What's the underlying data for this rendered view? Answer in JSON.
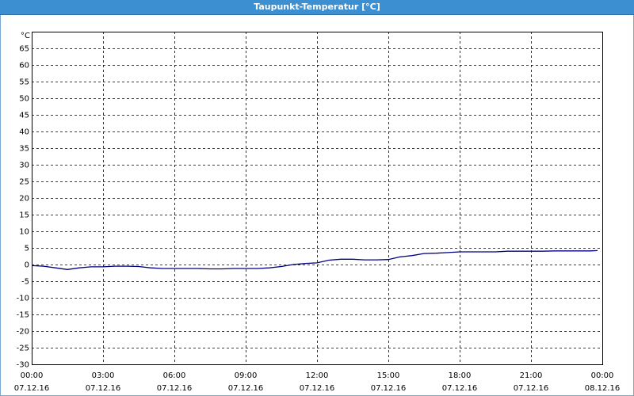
{
  "window": {
    "title": "Taupunkt-Temperatur [°C]"
  },
  "chart_data": {
    "type": "line",
    "title": "Taupunkt-Temperatur [°C]",
    "y_unit_label": "°C",
    "xlabel": "",
    "ylabel": "",
    "ylim": [
      -30,
      70
    ],
    "xlim_hours": [
      0,
      24
    ],
    "grid": true,
    "y_ticks": [
      "65",
      "60",
      "55",
      "50",
      "45",
      "40",
      "35",
      "30",
      "25",
      "20",
      "15",
      "10",
      "5",
      "0",
      "-5",
      "-10",
      "-15",
      "-20",
      "-25",
      "-30"
    ],
    "y_tick_values": [
      65,
      60,
      55,
      50,
      45,
      40,
      35,
      30,
      25,
      20,
      15,
      10,
      5,
      0,
      -5,
      -10,
      -15,
      -20,
      -25,
      -30
    ],
    "x_ticks": [
      {
        "time": "00:00",
        "date": "07.12.16",
        "hour": 0
      },
      {
        "time": "03:00",
        "date": "07.12.16",
        "hour": 3
      },
      {
        "time": "06:00",
        "date": "07.12.16",
        "hour": 6
      },
      {
        "time": "09:00",
        "date": "07.12.16",
        "hour": 9
      },
      {
        "time": "12:00",
        "date": "07.12.16",
        "hour": 12
      },
      {
        "time": "15:00",
        "date": "07.12.16",
        "hour": 15
      },
      {
        "time": "18:00",
        "date": "07.12.16",
        "hour": 18
      },
      {
        "time": "21:00",
        "date": "07.12.16",
        "hour": 21
      },
      {
        "time": "00:00",
        "date": "08.12.16",
        "hour": 24
      }
    ],
    "series": [
      {
        "color": "#000080",
        "x_hours": [
          0,
          0.5,
          1.0,
          1.5,
          2.0,
          2.5,
          3.0,
          3.5,
          4.0,
          4.5,
          5.0,
          5.5,
          6.0,
          6.5,
          7.0,
          7.5,
          8.0,
          8.5,
          9.0,
          9.5,
          10.0,
          10.5,
          11.0,
          11.5,
          12.0,
          12.5,
          13.0,
          13.5,
          14.0,
          14.5,
          15.0,
          15.5,
          16.0,
          16.5,
          17.0,
          17.5,
          18.0,
          18.5,
          19.0,
          19.5,
          20.0,
          20.5,
          21.0,
          21.5,
          22.0,
          22.5,
          23.0,
          23.5,
          23.8
        ],
        "values": [
          -0.3,
          -0.5,
          -1.0,
          -1.5,
          -1.0,
          -0.7,
          -0.7,
          -0.5,
          -0.5,
          -0.6,
          -1.0,
          -1.2,
          -1.2,
          -1.2,
          -1.2,
          -1.3,
          -1.3,
          -1.2,
          -1.2,
          -1.2,
          -1.0,
          -0.6,
          0.0,
          0.3,
          0.5,
          1.3,
          1.6,
          1.6,
          1.4,
          1.4,
          1.5,
          2.3,
          2.7,
          3.3,
          3.4,
          3.6,
          3.8,
          3.8,
          3.8,
          3.8,
          4.0,
          4.0,
          4.0,
          4.0,
          4.1,
          4.1,
          4.1,
          4.1,
          4.2
        ]
      }
    ]
  }
}
